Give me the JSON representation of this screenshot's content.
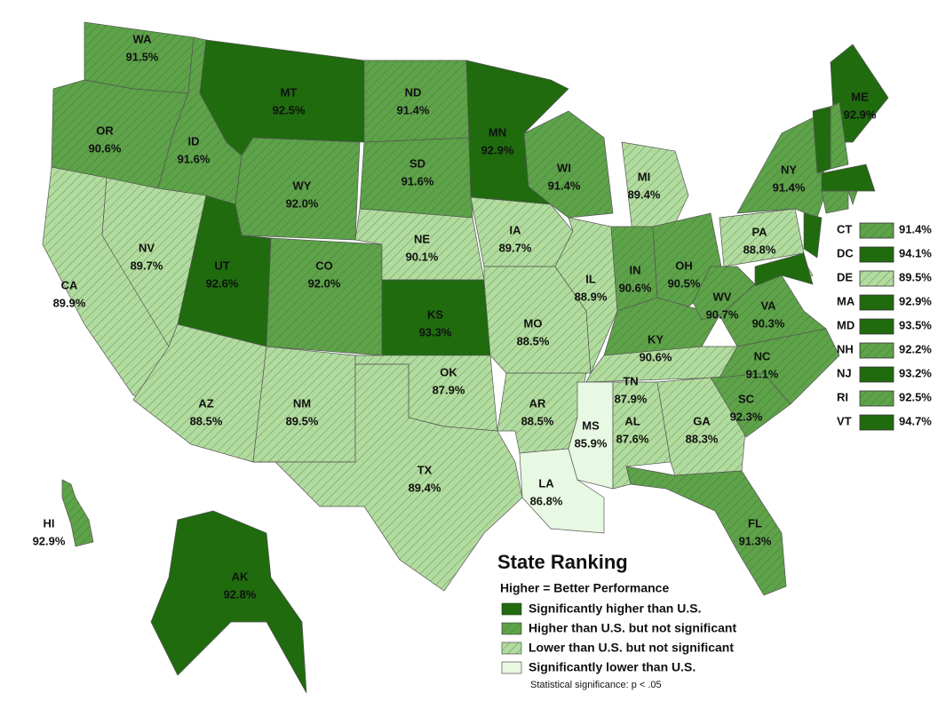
{
  "title": "State Ranking",
  "subtitle": "Higher = Better Performance",
  "note": "Statistical significance: p < .05",
  "legend": [
    {
      "label": "Significantly higher than U.S.",
      "color": "#1f6b0e",
      "hatched": false
    },
    {
      "label": "Higher than U.S. but not significant",
      "color": "#5ea24a",
      "hatched": true
    },
    {
      "label": "Lower than U.S. but not significant",
      "color": "#b2dc9f",
      "hatched": true
    },
    {
      "label": "Significantly lower than U.S.",
      "color": "#e8f9e3",
      "hatched": false
    }
  ],
  "states": [
    {
      "abbr": "WA",
      "value": "91.5%",
      "category": 1
    },
    {
      "abbr": "OR",
      "value": "90.6%",
      "category": 1
    },
    {
      "abbr": "CA",
      "value": "89.9%",
      "category": 2
    },
    {
      "abbr": "ID",
      "value": "91.6%",
      "category": 1
    },
    {
      "abbr": "NV",
      "value": "89.7%",
      "category": 2
    },
    {
      "abbr": "MT",
      "value": "92.5%",
      "category": 0
    },
    {
      "abbr": "WY",
      "value": "92.0%",
      "category": 1
    },
    {
      "abbr": "UT",
      "value": "92.6%",
      "category": 0
    },
    {
      "abbr": "CO",
      "value": "92.0%",
      "category": 1
    },
    {
      "abbr": "AZ",
      "value": "88.5%",
      "category": 2
    },
    {
      "abbr": "NM",
      "value": "89.5%",
      "category": 2
    },
    {
      "abbr": "ND",
      "value": "91.4%",
      "category": 1
    },
    {
      "abbr": "SD",
      "value": "91.6%",
      "category": 1
    },
    {
      "abbr": "NE",
      "value": "90.1%",
      "category": 2
    },
    {
      "abbr": "KS",
      "value": "93.3%",
      "category": 0
    },
    {
      "abbr": "OK",
      "value": "87.9%",
      "category": 2
    },
    {
      "abbr": "TX",
      "value": "89.4%",
      "category": 2
    },
    {
      "abbr": "MN",
      "value": "92.9%",
      "category": 0
    },
    {
      "abbr": "IA",
      "value": "89.7%",
      "category": 2
    },
    {
      "abbr": "MO",
      "value": "88.5%",
      "category": 2
    },
    {
      "abbr": "AR",
      "value": "88.5%",
      "category": 2
    },
    {
      "abbr": "LA",
      "value": "86.8%",
      "category": 3
    },
    {
      "abbr": "WI",
      "value": "91.4%",
      "category": 1
    },
    {
      "abbr": "IL",
      "value": "88.9%",
      "category": 2
    },
    {
      "abbr": "MI",
      "value": "89.4%",
      "category": 2
    },
    {
      "abbr": "IN",
      "value": "90.6%",
      "category": 1
    },
    {
      "abbr": "OH",
      "value": "90.5%",
      "category": 1
    },
    {
      "abbr": "KY",
      "value": "90.6%",
      "category": 1
    },
    {
      "abbr": "TN",
      "value": "87.9%",
      "category": 2
    },
    {
      "abbr": "MS",
      "value": "85.9%",
      "category": 3
    },
    {
      "abbr": "AL",
      "value": "87.6%",
      "category": 2
    },
    {
      "abbr": "GA",
      "value": "88.3%",
      "category": 2
    },
    {
      "abbr": "FL",
      "value": "91.3%",
      "category": 1
    },
    {
      "abbr": "SC",
      "value": "92.3%",
      "category": 1
    },
    {
      "abbr": "NC",
      "value": "91.1%",
      "category": 1
    },
    {
      "abbr": "VA",
      "value": "90.3%",
      "category": 1
    },
    {
      "abbr": "WV",
      "value": "90.7%",
      "category": 1
    },
    {
      "abbr": "PA",
      "value": "88.8%",
      "category": 2
    },
    {
      "abbr": "NY",
      "value": "91.4%",
      "category": 1
    },
    {
      "abbr": "ME",
      "value": "92.9%",
      "category": 0
    },
    {
      "abbr": "HI",
      "value": "92.9%",
      "category": 1
    },
    {
      "abbr": "AK",
      "value": "92.8%",
      "category": 0
    }
  ],
  "small_states": [
    {
      "abbr": "CT",
      "value": "91.4%",
      "category": 1
    },
    {
      "abbr": "DC",
      "value": "94.1%",
      "category": 0
    },
    {
      "abbr": "DE",
      "value": "89.5%",
      "category": 2
    },
    {
      "abbr": "MA",
      "value": "92.9%",
      "category": 0
    },
    {
      "abbr": "MD",
      "value": "93.5%",
      "category": 0
    },
    {
      "abbr": "NH",
      "value": "92.2%",
      "category": 1
    },
    {
      "abbr": "NJ",
      "value": "93.2%",
      "category": 0
    },
    {
      "abbr": "RI",
      "value": "92.5%",
      "category": 1
    },
    {
      "abbr": "VT",
      "value": "94.7%",
      "category": 0
    }
  ]
}
